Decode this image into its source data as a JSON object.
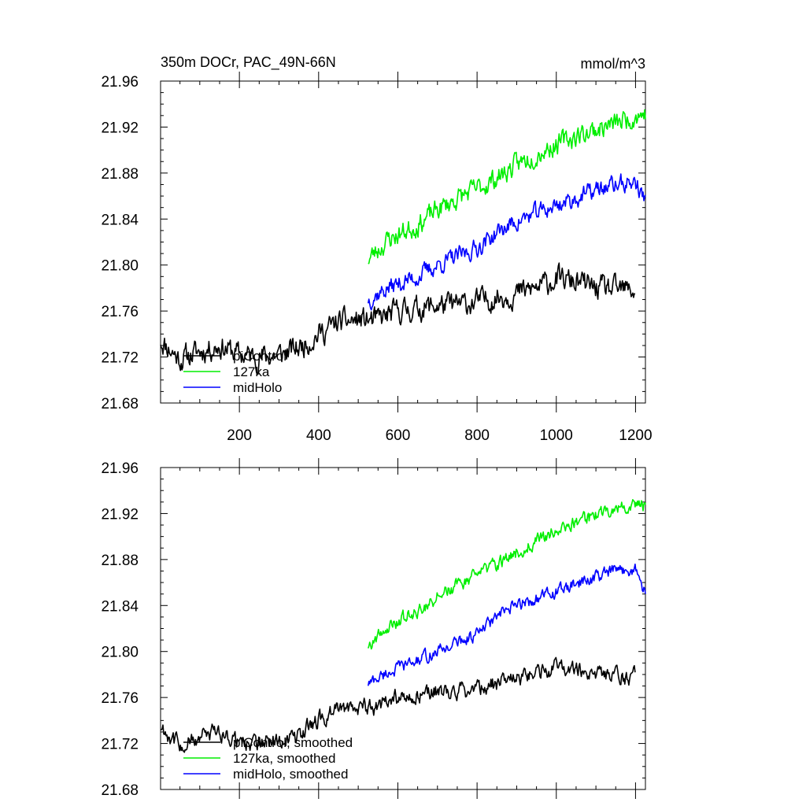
{
  "colors": {
    "picontrol": "#000000",
    "127ka": "#00ee00",
    "midHolo": "#0000ff"
  },
  "chart_data": [
    {
      "type": "line",
      "title_left": "350m DOCr, PAC_49N-66N",
      "title_right": "mmol/m^3",
      "xlim": [
        1,
        1225
      ],
      "ylim": [
        21.68,
        21.96
      ],
      "xticks": [
        200,
        400,
        600,
        800,
        1000,
        1200
      ],
      "xtick_labels": [
        "200",
        "400",
        "600",
        "800",
        "1000",
        "1200"
      ],
      "yticks": [
        21.68,
        21.72,
        21.76,
        21.8,
        21.84,
        21.88,
        21.92,
        21.96
      ],
      "ytick_labels": [
        "21.68",
        "21.72",
        "21.76",
        "21.80",
        "21.84",
        "21.88",
        "21.92",
        "21.96"
      ],
      "grid": false,
      "legend_position": "bottom-left",
      "series": [
        {
          "name": "piControl",
          "color": "#000000",
          "x_start": 1,
          "x_end": 1200,
          "anchors": [
            [
              1,
              21.735
            ],
            [
              50,
              21.718
            ],
            [
              100,
              21.725
            ],
            [
              150,
              21.73
            ],
            [
              200,
              21.722
            ],
            [
              250,
              21.72
            ],
            [
              300,
              21.722
            ],
            [
              350,
              21.728
            ],
            [
              400,
              21.74
            ],
            [
              450,
              21.75
            ],
            [
              500,
              21.752
            ],
            [
              550,
              21.752
            ],
            [
              600,
              21.76
            ],
            [
              650,
              21.762
            ],
            [
              700,
              21.765
            ],
            [
              750,
              21.765
            ],
            [
              800,
              21.768
            ],
            [
              850,
              21.772
            ],
            [
              900,
              21.775
            ],
            [
              950,
              21.78
            ],
            [
              1000,
              21.788
            ],
            [
              1050,
              21.785
            ],
            [
              1100,
              21.78
            ],
            [
              1150,
              21.778
            ],
            [
              1200,
              21.778
            ]
          ],
          "noise": 0.0085,
          "seed": 11
        },
        {
          "name": "127ka",
          "color": "#00ee00",
          "x_start": 525,
          "x_end": 1225,
          "anchors": [
            [
              525,
              21.805
            ],
            [
              575,
              21.822
            ],
            [
              650,
              21.835
            ],
            [
              700,
              21.848
            ],
            [
              750,
              21.858
            ],
            [
              800,
              21.866
            ],
            [
              850,
              21.876
            ],
            [
              900,
              21.887
            ],
            [
              950,
              21.897
            ],
            [
              1000,
              21.905
            ],
            [
              1050,
              21.912
            ],
            [
              1100,
              21.918
            ],
            [
              1150,
              21.923
            ],
            [
              1200,
              21.93
            ],
            [
              1225,
              21.932
            ]
          ],
          "noise": 0.0075,
          "seed": 23
        },
        {
          "name": "midHolo",
          "color": "#0000ff",
          "x_start": 525,
          "x_end": 1225,
          "anchors": [
            [
              525,
              21.77
            ],
            [
              575,
              21.78
            ],
            [
              650,
              21.79
            ],
            [
              700,
              21.8
            ],
            [
              750,
              21.807
            ],
            [
              800,
              21.815
            ],
            [
              850,
              21.828
            ],
            [
              900,
              21.838
            ],
            [
              950,
              21.845
            ],
            [
              1000,
              21.852
            ],
            [
              1050,
              21.858
            ],
            [
              1100,
              21.865
            ],
            [
              1150,
              21.87
            ],
            [
              1200,
              21.872
            ],
            [
              1225,
              21.855
            ]
          ],
          "noise": 0.0065,
          "seed": 37
        }
      ],
      "legend": [
        "piControl",
        "127ka",
        "midHolo"
      ]
    },
    {
      "type": "line",
      "xlim": [
        1,
        1225
      ],
      "ylim": [
        21.68,
        21.96
      ],
      "xticks": [
        200,
        400,
        600,
        800,
        1000,
        1200
      ],
      "yticks": [
        21.68,
        21.72,
        21.76,
        21.8,
        21.84,
        21.88,
        21.92,
        21.96
      ],
      "ytick_labels": [
        "21.68",
        "21.72",
        "21.76",
        "21.80",
        "21.84",
        "21.88",
        "21.92",
        "21.96"
      ],
      "grid": false,
      "legend_position": "bottom-left",
      "series": [
        {
          "name": "piControl, smoothed",
          "color": "#000000",
          "x_start": 1,
          "x_end": 1200,
          "anchors": [
            [
              1,
              21.735
            ],
            [
              50,
              21.718
            ],
            [
              100,
              21.725
            ],
            [
              150,
              21.73
            ],
            [
              200,
              21.722
            ],
            [
              250,
              21.72
            ],
            [
              300,
              21.722
            ],
            [
              350,
              21.728
            ],
            [
              400,
              21.74
            ],
            [
              450,
              21.75
            ],
            [
              500,
              21.752
            ],
            [
              550,
              21.752
            ],
            [
              600,
              21.76
            ],
            [
              650,
              21.762
            ],
            [
              700,
              21.765
            ],
            [
              750,
              21.765
            ],
            [
              800,
              21.768
            ],
            [
              850,
              21.772
            ],
            [
              900,
              21.775
            ],
            [
              950,
              21.78
            ],
            [
              1000,
              21.788
            ],
            [
              1050,
              21.785
            ],
            [
              1100,
              21.78
            ],
            [
              1150,
              21.778
            ],
            [
              1200,
              21.778
            ]
          ],
          "noise": 0.006,
          "seed": 11
        },
        {
          "name": "127ka, smoothed",
          "color": "#00ee00",
          "x_start": 525,
          "x_end": 1225,
          "anchors": [
            [
              525,
              21.805
            ],
            [
              575,
              21.822
            ],
            [
              650,
              21.835
            ],
            [
              700,
              21.848
            ],
            [
              750,
              21.858
            ],
            [
              800,
              21.866
            ],
            [
              850,
              21.876
            ],
            [
              900,
              21.887
            ],
            [
              950,
              21.897
            ],
            [
              1000,
              21.905
            ],
            [
              1050,
              21.912
            ],
            [
              1100,
              21.918
            ],
            [
              1150,
              21.923
            ],
            [
              1200,
              21.93
            ],
            [
              1225,
              21.925
            ]
          ],
          "noise": 0.005,
          "seed": 23
        },
        {
          "name": "midHolo, smoothed",
          "color": "#0000ff",
          "x_start": 525,
          "x_end": 1225,
          "anchors": [
            [
              525,
              21.772
            ],
            [
              575,
              21.782
            ],
            [
              650,
              21.792
            ],
            [
              700,
              21.8
            ],
            [
              750,
              21.808
            ],
            [
              800,
              21.815
            ],
            [
              850,
              21.83
            ],
            [
              900,
              21.84
            ],
            [
              950,
              21.846
            ],
            [
              1000,
              21.852
            ],
            [
              1050,
              21.858
            ],
            [
              1100,
              21.865
            ],
            [
              1150,
              21.87
            ],
            [
              1200,
              21.872
            ],
            [
              1225,
              21.85
            ]
          ],
          "noise": 0.0045,
          "seed": 37
        }
      ],
      "legend": [
        "piControl, smoothed",
        "127ka, smoothed",
        "midHolo, smoothed"
      ]
    }
  ]
}
